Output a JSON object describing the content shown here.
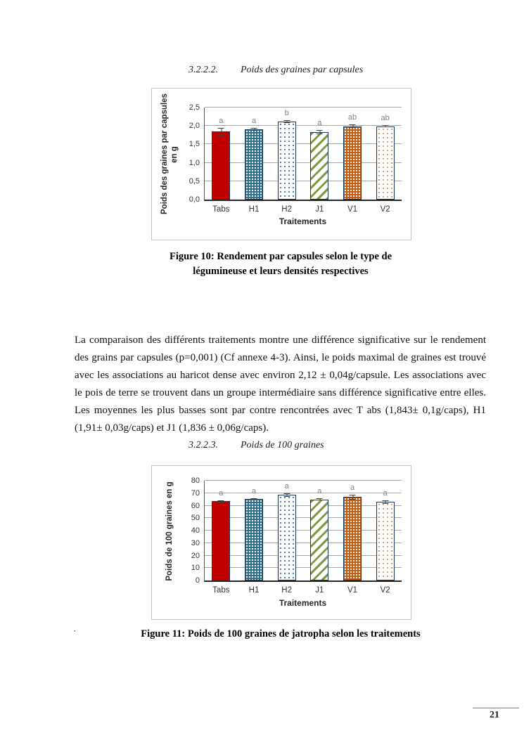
{
  "page": {
    "number": "21"
  },
  "sections": [
    {
      "number": "3.2.2.2.",
      "title": "Poids des graines par capsules"
    },
    {
      "number": "3.2.2.3.",
      "title": "Poids de 100 graines"
    }
  ],
  "paragraph": "La comparaison des différents traitements montre une différence significative sur le rendement des grains par capsules (p=0,001) (Cf annexe 4-3). Ainsi, le poids maximal de graines est trouvé avec les associations au haricot dense avec environ 2,12 ± 0,04g/capsule. Les associations avec le pois de terre se trouvent dans un groupe intermédiaire sans différence significative entre elles. Les moyennes les plus basses sont par contre rencontrées avec T abs (1,843± 0,1g/caps), H1 (1,91± 0,03g/caps)  et J1 (1,836 ±  0,06g/caps).",
  "captions": [
    {
      "line1": "Figure 10: Rendement par capsules selon le type de",
      "line2": "légumineuse et leurs densités respectives"
    },
    {
      "line1": "Figure 11: Poids de 100 graines de jatropha selon les traitements",
      "line2": ""
    }
  ],
  "stray_dot": "·",
  "chart_data": [
    {
      "type": "bar",
      "title": "",
      "categories": [
        "Tabs",
        "H1",
        "H2",
        "J1",
        "V1",
        "V2"
      ],
      "values": [
        1.843,
        1.91,
        2.12,
        1.836,
        1.99,
        1.99
      ],
      "errors": [
        0.1,
        0.03,
        0.04,
        0.06,
        0.05,
        0.03
      ],
      "letters": [
        "a",
        "a",
        "b",
        "a",
        "ab",
        "ab"
      ],
      "ylabel_lines": [
        "Poids des graines  par capsules",
        "en g"
      ],
      "xlabel": "Traitements",
      "ylim": [
        0,
        2.5
      ],
      "ytick_values": [
        0,
        0.5,
        1.0,
        1.5,
        2.0,
        2.5
      ],
      "ytick_labels": [
        "0,0",
        "0,5",
        "1,0",
        "1,5",
        "2,0",
        "2,5"
      ],
      "grid": true,
      "legend": false,
      "bar_border_color": "#17375E",
      "styles": [
        {
          "pattern": "solid",
          "color": "#C00000"
        },
        {
          "pattern": "white-dots",
          "color": "#2E6E8E",
          "dot": "#FFFFFF"
        },
        {
          "pattern": "color-dots",
          "color": "#FFFFFF",
          "dot": "#4472A8"
        },
        {
          "pattern": "diag-stripes",
          "color": "#FFFFFF",
          "stripe": "#7C9A3D"
        },
        {
          "pattern": "white-dots",
          "color": "#C55A11",
          "dot": "#FFFFFF"
        },
        {
          "pattern": "color-dots",
          "color": "#FFFFFF",
          "dot": "#D89B77"
        }
      ]
    },
    {
      "type": "bar",
      "title": "",
      "categories": [
        "Tabs",
        "H1",
        "H2",
        "J1",
        "V1",
        "V2"
      ],
      "values": [
        63.5,
        65.5,
        68.5,
        65,
        67,
        63
      ],
      "errors": [
        1.0,
        0.7,
        1.5,
        0.8,
        2.0,
        1.5
      ],
      "letters": [
        "a",
        "a",
        "a",
        "a",
        "a",
        "a"
      ],
      "ylabel_lines": [
        "Poids de 100 graines en g"
      ],
      "xlabel": "Traitements",
      "ylim": [
        0,
        80
      ],
      "ytick_values": [
        0,
        10,
        20,
        30,
        40,
        50,
        60,
        70,
        80
      ],
      "ytick_labels": [
        "0",
        "10",
        "20",
        "30",
        "40",
        "50",
        "60",
        "70",
        "80"
      ],
      "grid": true,
      "legend": false,
      "bar_border_color": "#17375E",
      "styles": [
        {
          "pattern": "solid",
          "color": "#C00000"
        },
        {
          "pattern": "white-dots",
          "color": "#2E6E8E",
          "dot": "#FFFFFF"
        },
        {
          "pattern": "color-dots",
          "color": "#FFFFFF",
          "dot": "#4472A8"
        },
        {
          "pattern": "diag-stripes",
          "color": "#FFFFFF",
          "stripe": "#7C9A3D"
        },
        {
          "pattern": "white-dots",
          "color": "#C55A11",
          "dot": "#FFFFFF"
        },
        {
          "pattern": "color-dots",
          "color": "#FFFFFF",
          "dot": "#D89B77"
        }
      ]
    }
  ]
}
